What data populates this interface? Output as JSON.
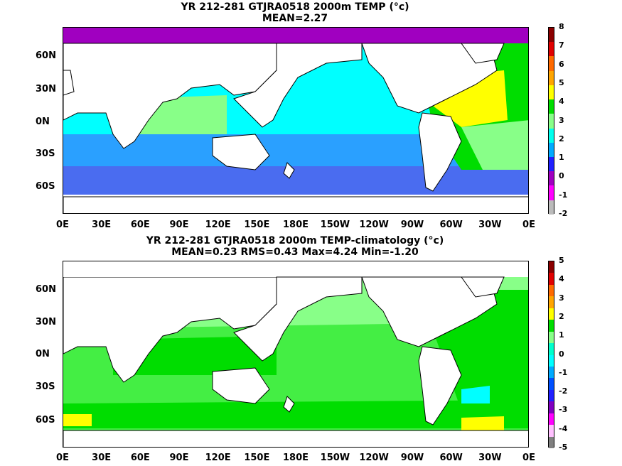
{
  "panels": [
    {
      "title_line1": "YR 212-281 GTJRA0518 2000m TEMP (°c)",
      "title_line2": "MEAN=2.27",
      "lat_labels": [
        "60N",
        "30N",
        "0N",
        "30S",
        "60S"
      ],
      "lon_labels": [
        "0E",
        "30E",
        "60E",
        "90E",
        "120E",
        "150E",
        "180E",
        "150W",
        "120W",
        "90W",
        "60W",
        "30W",
        "0E"
      ],
      "colorbar_labels": [
        "8",
        "7",
        "6",
        "5",
        "4",
        "3",
        "2",
        "1",
        "0",
        "-1",
        "-2"
      ],
      "colorbar_colors": [
        "#8b0000",
        "#e00000",
        "#ff6a00",
        "#ffa500",
        "#ffff00",
        "#00dd00",
        "#88ff88",
        "#00ffee",
        "#00aaff",
        "#2020ff",
        "#a000c0",
        "#ff00ff",
        "#bbbbbb"
      ]
    },
    {
      "title_line1": "YR 212-281 GTJRA0518 2000m TEMP-climatology (°c)",
      "title_line2": "MEAN=0.23   RMS=0.43   Max=4.24   Min=-1.20",
      "lat_labels": [
        "60N",
        "30N",
        "0N",
        "30S",
        "60S"
      ],
      "lon_labels": [
        "0E",
        "30E",
        "60E",
        "90E",
        "120E",
        "150E",
        "180E",
        "150W",
        "120W",
        "90W",
        "60W",
        "30W",
        "0E"
      ],
      "colorbar_labels": [
        "5",
        "4",
        "3",
        "2",
        "1",
        "0",
        "-1",
        "-2",
        "-3",
        "-4",
        "-5"
      ],
      "colorbar_colors": [
        "#8b0000",
        "#e00000",
        "#ff6a00",
        "#ffa500",
        "#ffff00",
        "#00dd00",
        "#88ff88",
        "#00ffcc",
        "#00ffff",
        "#00aaff",
        "#0050ff",
        "#2020ff",
        "#8000c0",
        "#ff00ff",
        "#ffc0ff",
        "#808080"
      ]
    }
  ],
  "legend_colors_top": {
    "land": "#ffffff",
    "deep_south": "#4a6cf0",
    "south": "#2aa0ff",
    "pacific": "#00ffff",
    "atlantic_north": "#00dd00",
    "atlantic_warm": "#ffff00",
    "arctic": "#a000c0"
  },
  "legend_colors_bottom": {
    "land": "#ffffff",
    "ocean": "#88ff88",
    "band": "#00dd00",
    "cold": "#00ffff",
    "warm": "#ffff00"
  }
}
